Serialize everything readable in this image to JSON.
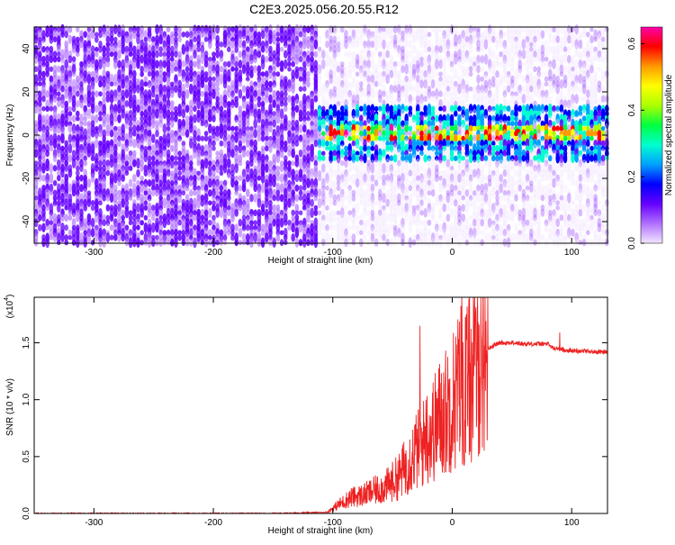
{
  "title": "C2E3.2025.056.20.55.R12",
  "chart_data": [
    {
      "type": "heatmap",
      "xlabel": "Height of straight line (km)",
      "ylabel": "Frequency (Hz)",
      "xlim": [
        -350,
        130
      ],
      "ylim": [
        -50,
        50
      ],
      "xticks": [
        -300,
        -200,
        -100,
        0,
        100
      ],
      "yticks": [
        -40,
        -20,
        0,
        20,
        40
      ],
      "colorbar": {
        "label": "Normalized spectral amplitude",
        "range": [
          0.0,
          0.65
        ],
        "ticks": [
          0.0,
          0.2,
          0.4,
          0.6
        ],
        "colors": [
          "#f2e6ff",
          "#b070ff",
          "#6600ff",
          "#0000ff",
          "#00a0ff",
          "#00ffd0",
          "#00ff40",
          "#aaff00",
          "#ffff00",
          "#ff9900",
          "#ff0000",
          "#ff00aa"
        ]
      },
      "description_regions": [
        {
          "x_range": [
            -350,
            -115
          ],
          "y_range": [
            -50,
            50
          ],
          "level": 0.08
        },
        {
          "x_range": [
            -115,
            130
          ],
          "y_range": [
            -50,
            50
          ],
          "level": 0.02
        },
        {
          "x_range": [
            -115,
            130
          ],
          "y_range": [
            -10,
            15
          ],
          "level": 0.18
        },
        {
          "x_range": [
            -115,
            130
          ],
          "y_center": 2,
          "band": 3,
          "level": 0.35
        }
      ],
      "peak_point": {
        "x": 55,
        "y": 2,
        "value": 0.6
      }
    },
    {
      "type": "line",
      "xlabel": "Height of straight line (km)",
      "ylabel": "SNR (10 * v/v)",
      "scale_label": "(x10",
      "scale_exponent": "4",
      "xlim": [
        -350,
        130
      ],
      "ylim": [
        0.0,
        1.9
      ],
      "xticks": [
        -300,
        -200,
        -100,
        0,
        100
      ],
      "yticks": [
        0.0,
        0.5,
        1.0,
        1.5
      ],
      "color": "#ee2222",
      "series": [
        {
          "x": [
            -350,
            -300,
            -250,
            -200,
            -150,
            -105,
            -95,
            -85,
            -75,
            -65,
            -55,
            -45,
            -40,
            -35,
            -30,
            -25,
            -20,
            -15,
            -10,
            -5,
            0,
            5,
            8,
            10,
            15,
            20,
            25,
            30,
            35,
            40,
            50,
            60,
            70,
            80,
            85,
            88,
            92,
            100,
            110,
            120,
            130
          ],
          "y": [
            0.0,
            0.0,
            0.0,
            0.0,
            0.0,
            0.01,
            0.08,
            0.14,
            0.16,
            0.2,
            0.24,
            0.32,
            0.4,
            0.48,
            0.55,
            0.6,
            0.7,
            0.75,
            0.85,
            0.9,
            1.0,
            1.08,
            1.2,
            1.1,
            1.2,
            1.3,
            1.4,
            1.45,
            1.48,
            1.5,
            1.5,
            1.49,
            1.49,
            1.49,
            1.45,
            1.45,
            1.44,
            1.43,
            1.43,
            1.42,
            1.42
          ]
        }
      ],
      "spikes": [
        {
          "x": -27,
          "y": 1.65
        },
        {
          "x": -22,
          "y": 1.0
        },
        {
          "x": 8,
          "y": 1.9
        },
        {
          "x": 10,
          "y": 0.42
        },
        {
          "x": 90,
          "y": 1.59
        }
      ]
    }
  ]
}
